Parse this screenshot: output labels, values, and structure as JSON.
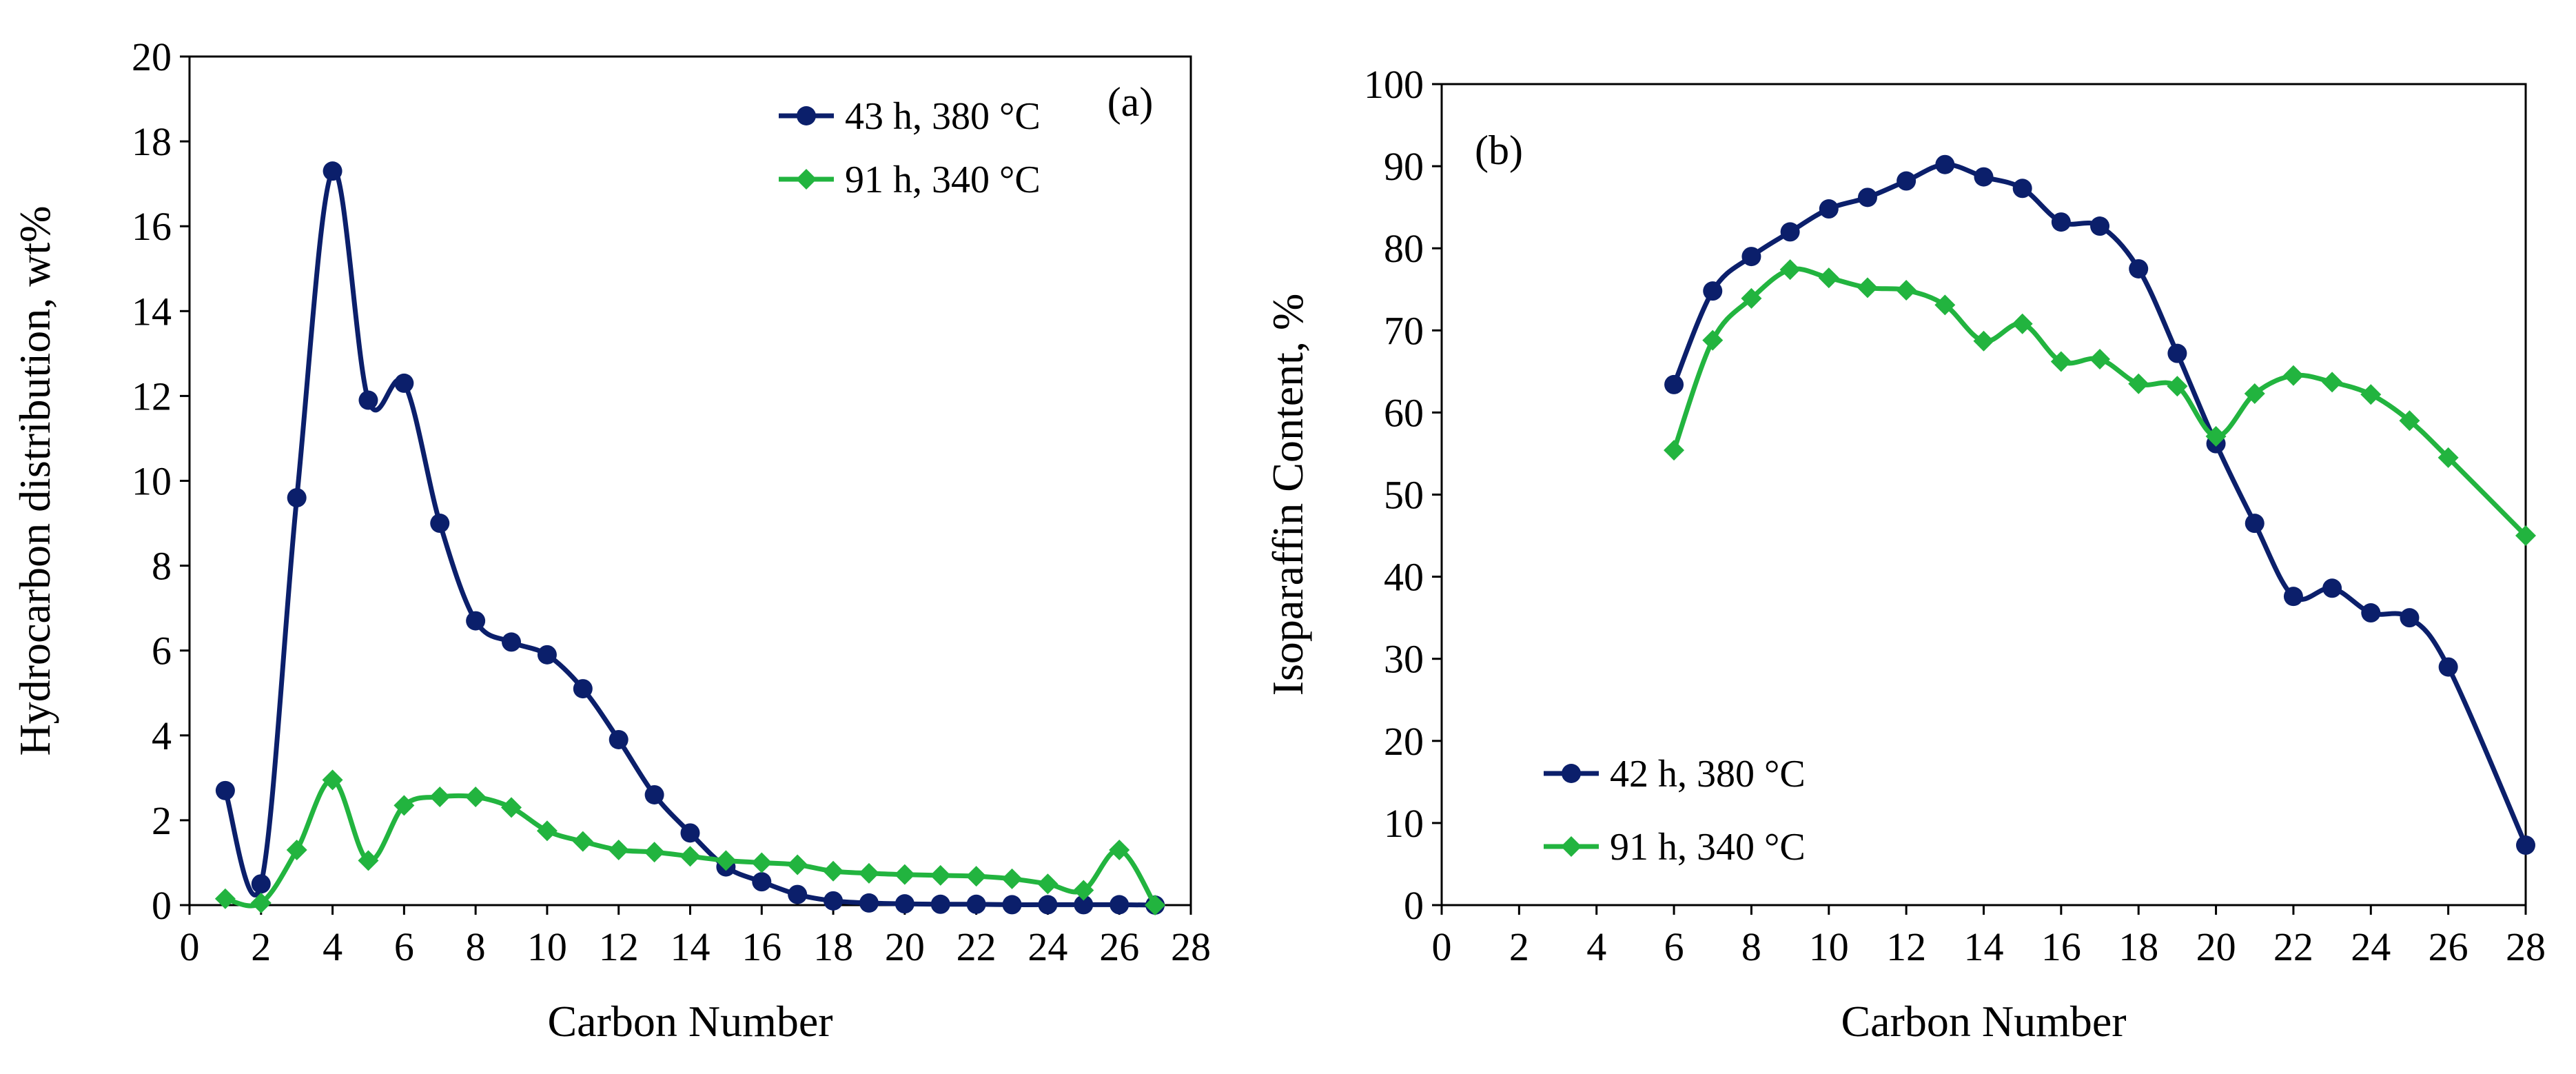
{
  "colors": {
    "navy": "#0b1f6b",
    "green": "#22b43f"
  },
  "chart_data": [
    {
      "type": "line",
      "panel_label": "(a)",
      "xlabel": "Carbon Number",
      "ylabel": "Hydrocarbon distribution, wt%",
      "xlim": [
        0,
        28
      ],
      "ylim": [
        0,
        20
      ],
      "xticks": [
        "0",
        "2",
        "4",
        "6",
        "8",
        "10",
        "12",
        "14",
        "16",
        "18",
        "20",
        "22",
        "24",
        "26",
        "28"
      ],
      "yticks": [
        "0",
        "2",
        "4",
        "6",
        "8",
        "10",
        "12",
        "14",
        "16",
        "18",
        "20"
      ],
      "legend_position": "top-right",
      "grid": false,
      "series": [
        {
          "name": "43 h, 380 °C",
          "color": "#0b1f6b",
          "marker": "circle",
          "x": [
            1,
            2,
            3,
            4,
            5,
            6,
            7,
            8,
            9,
            10,
            11,
            12,
            13,
            14,
            15,
            16,
            17,
            18,
            19,
            20,
            21,
            22,
            23,
            24,
            25,
            26,
            27
          ],
          "y": [
            2.7,
            0.5,
            9.6,
            17.3,
            11.9,
            12.3,
            9.0,
            6.7,
            6.2,
            5.9,
            5.1,
            3.9,
            2.6,
            1.7,
            0.9,
            0.55,
            0.25,
            0.1,
            0.05,
            0.03,
            0.02,
            0.02,
            0.01,
            0.01,
            0.01,
            0.01,
            0.0
          ]
        },
        {
          "name": "91 h, 340 °C",
          "color": "#22b43f",
          "marker": "diamond",
          "x": [
            1,
            2,
            3,
            4,
            5,
            6,
            7,
            8,
            9,
            10,
            11,
            12,
            13,
            14,
            15,
            16,
            17,
            18,
            19,
            20,
            21,
            22,
            23,
            24,
            25,
            26,
            27
          ],
          "y": [
            0.15,
            0.05,
            1.3,
            2.95,
            1.05,
            2.35,
            2.55,
            2.55,
            2.3,
            1.75,
            1.5,
            1.3,
            1.25,
            1.15,
            1.05,
            1.0,
            0.95,
            0.8,
            0.75,
            0.72,
            0.7,
            0.68,
            0.62,
            0.5,
            0.35,
            1.3,
            0.0
          ]
        }
      ]
    },
    {
      "type": "line",
      "panel_label": "(b)",
      "xlabel": "Carbon Number",
      "ylabel": "Isoparaffin Content, %",
      "xlim": [
        0,
        28
      ],
      "ylim": [
        0,
        100
      ],
      "xticks": [
        "0",
        "2",
        "4",
        "6",
        "8",
        "10",
        "12",
        "14",
        "16",
        "18",
        "20",
        "22",
        "24",
        "26",
        "28"
      ],
      "yticks": [
        "0",
        "10",
        "20",
        "30",
        "40",
        "50",
        "60",
        "70",
        "80",
        "90",
        "100"
      ],
      "legend_position": "bottom-left",
      "grid": false,
      "series": [
        {
          "name": "42 h, 380 °C",
          "color": "#0b1f6b",
          "marker": "circle",
          "x": [
            6,
            7,
            8,
            9,
            10,
            11,
            12,
            13,
            14,
            15,
            16,
            17,
            18,
            19,
            20,
            21,
            22,
            23,
            24,
            25,
            26,
            28
          ],
          "y": [
            63.4,
            74.8,
            79.0,
            82.0,
            84.8,
            86.2,
            88.2,
            90.2,
            88.7,
            87.3,
            83.2,
            82.7,
            77.5,
            67.2,
            56.2,
            46.5,
            37.6,
            38.6,
            35.6,
            35.0,
            29.0,
            7.3
          ]
        },
        {
          "name": "91 h, 340 °C",
          "color": "#22b43f",
          "marker": "diamond",
          "x": [
            6,
            7,
            8,
            9,
            10,
            11,
            12,
            13,
            14,
            15,
            16,
            17,
            18,
            19,
            20,
            21,
            22,
            23,
            24,
            25,
            26,
            28
          ],
          "y": [
            55.4,
            68.8,
            73.9,
            77.4,
            76.4,
            75.2,
            74.9,
            73.1,
            68.7,
            70.8,
            66.2,
            66.5,
            63.5,
            63.2,
            57.1,
            62.3,
            64.5,
            63.7,
            62.2,
            59.0,
            54.5,
            45.0
          ]
        }
      ]
    }
  ]
}
